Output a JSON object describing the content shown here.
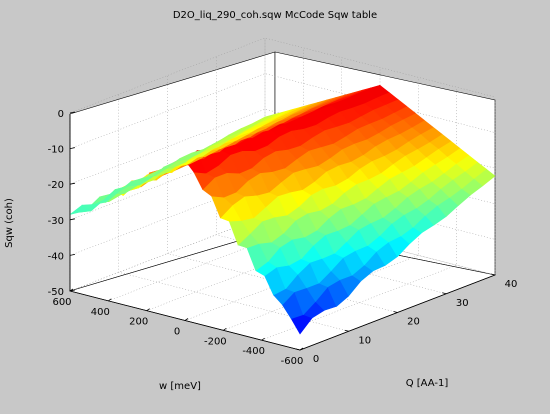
{
  "figure": {
    "title": "D2O_liq_290_coh.sqw McCode Sqw table",
    "background": "#c8c8c8",
    "axes_background": "#ffffff"
  },
  "chart_data": {
    "type": "surface",
    "title": "D2O_liq_290_coh.sqw McCode Sqw table",
    "xlabel": "w [meV]",
    "ylabel": "Q [AA-1]",
    "zlabel": "Sqw (coh)",
    "xlim": [
      -600,
      600
    ],
    "ylim": [
      0,
      40
    ],
    "zlim": [
      -50,
      0
    ],
    "xticks": [
      "600",
      "400",
      "200",
      "0",
      "-200",
      "-400",
      "-600"
    ],
    "yticks": [
      "0",
      "10",
      "20",
      "30",
      "40"
    ],
    "zticks": [
      "0",
      "-10",
      "-20",
      "-30",
      "-40",
      "-50"
    ],
    "grid": true,
    "colormap": "jet",
    "surface_summary": {
      "peak_value_approx": -5,
      "plateau_value_near_w0_approx": -15,
      "edge_value_at_high_w_low_Q_approx": -20,
      "min_value_at_low_w_low_Q_approx": -48
    }
  }
}
